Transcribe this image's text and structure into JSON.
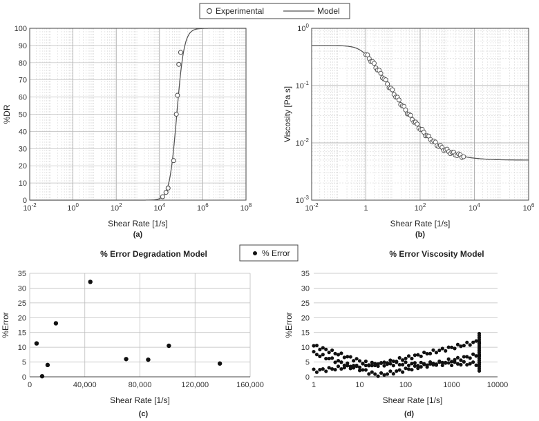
{
  "legend_top": {
    "experimental": "Experimental",
    "model": "Model"
  },
  "legend_bottom": {
    "error": "% Error"
  },
  "colors": {
    "marker": "#111111",
    "line": "#555555",
    "grid": "#bdbdbd",
    "axis": "#444444"
  },
  "chart_data": [
    {
      "id": "a",
      "type": "scatter",
      "caption": "(a)",
      "xlabel": "Shear Rate [1/s]",
      "ylabel": "%DR",
      "xscale": "log",
      "xlim_exp": [
        -2,
        8
      ],
      "ylim": [
        0,
        100
      ],
      "xticks": [
        {
          "exp": -2,
          "base": "10",
          "sup": "-2"
        },
        {
          "exp": 0,
          "base": "10",
          "sup": "0"
        },
        {
          "exp": 2,
          "base": "10",
          "sup": "2"
        },
        {
          "exp": 4,
          "base": "10",
          "sup": "4"
        },
        {
          "exp": 6,
          "base": "10",
          "sup": "6"
        },
        {
          "exp": 8,
          "base": "10",
          "sup": "8"
        }
      ],
      "yticks": [
        "0",
        "10",
        "20",
        "30",
        "40",
        "50",
        "60",
        "70",
        "80",
        "90",
        "100"
      ],
      "series": [
        {
          "name": "Experimental",
          "kind": "markers-open",
          "points": [
            [
              14000,
              2
            ],
            [
              20000,
              4.5
            ],
            [
              25000,
              7
            ],
            [
              45000,
              23
            ],
            [
              60000,
              50
            ],
            [
              68000,
              61
            ],
            [
              78000,
              79
            ],
            [
              95000,
              86
            ]
          ]
        },
        {
          "name": "Model",
          "kind": "line",
          "model": "sigmoid",
          "center_exp": 4.8,
          "width": 0.17
        }
      ]
    },
    {
      "id": "b",
      "type": "scatter",
      "caption": "(b)",
      "xlabel": "Shear Rate [1/s]",
      "ylabel": "Viscosity [Pa s]",
      "xscale": "log",
      "yscale": "log",
      "xlim_exp": [
        -2,
        6
      ],
      "ylim_exp": [
        -3,
        0
      ],
      "xticks": [
        {
          "exp": -2,
          "base": "10",
          "sup": "-2"
        },
        {
          "exp": 0,
          "base": "1",
          "sup": ""
        },
        {
          "exp": 2,
          "base": "10",
          "sup": "2"
        },
        {
          "exp": 4,
          "base": "10",
          "sup": "4"
        },
        {
          "exp": 6,
          "base": "10",
          "sup": "6"
        }
      ],
      "yticks": [
        {
          "exp": -3,
          "base": "10",
          "sup": "-3"
        },
        {
          "exp": -2,
          "base": "10",
          "sup": "-2"
        },
        {
          "exp": -1,
          "base": "10",
          "sup": "-1"
        },
        {
          "exp": 0,
          "base": "10",
          "sup": "0"
        }
      ],
      "series": [
        {
          "name": "Experimental",
          "kind": "markers-open",
          "x_range": [
            1,
            4000
          ],
          "count": 60
        },
        {
          "name": "Model",
          "kind": "line",
          "model": "carreau",
          "eta0": 0.5,
          "eta_inf": 0.005,
          "lambda": 1.3,
          "n": 0.25
        }
      ]
    },
    {
      "id": "c",
      "type": "scatter",
      "title": "% Error Degradation Model",
      "caption": "(c)",
      "xlabel": "Shear Rate [1/s]",
      "ylabel": "%Error",
      "xlim": [
        0,
        160000
      ],
      "ylim": [
        0,
        35
      ],
      "xticks": [
        "0",
        "40,000",
        "80,000",
        "120,000",
        "160,000"
      ],
      "yticks": [
        "0",
        "5",
        "10",
        "15",
        "20",
        "25",
        "30",
        "35"
      ],
      "series": [
        {
          "name": "% Error",
          "kind": "markers-filled",
          "points": [
            [
              5000,
              11.3
            ],
            [
              9000,
              0.2
            ],
            [
              13000,
              4
            ],
            [
              19000,
              18.1
            ],
            [
              44000,
              32.1
            ],
            [
              70000,
              6
            ],
            [
              86000,
              5.8
            ],
            [
              101000,
              10.5
            ],
            [
              138000,
              4.5
            ]
          ]
        }
      ]
    },
    {
      "id": "d",
      "type": "scatter",
      "title": "% Error Viscosity Model",
      "caption": "(d)",
      "xlabel": "Shear Rate [1/s]",
      "ylabel": "%Error",
      "xscale": "log",
      "xlim": [
        1,
        10000
      ],
      "ylim": [
        0,
        35
      ],
      "xticks": [
        "1",
        "10",
        "100",
        "1000",
        "10000"
      ],
      "yticks": [
        "0",
        "5",
        "10",
        "15",
        "20",
        "25",
        "30",
        "35"
      ],
      "series": [
        {
          "name": "% Error",
          "kind": "markers-filled",
          "x_range": [
            1,
            4000
          ],
          "count": 55,
          "bands": [
            {
              "start": 10.5,
              "dip": 3.8,
              "dip_at": 1.3,
              "end": 12
            },
            {
              "start": 8,
              "dip": 0.5,
              "dip_at": 1.4,
              "end": 7.5
            },
            {
              "start": 2,
              "dip": 4.3,
              "dip_at": 1.3,
              "end": 4.5
            }
          ],
          "final_column_x": 4000,
          "final_column_ymin": 2,
          "final_column_ymax": 15
        }
      ]
    }
  ]
}
